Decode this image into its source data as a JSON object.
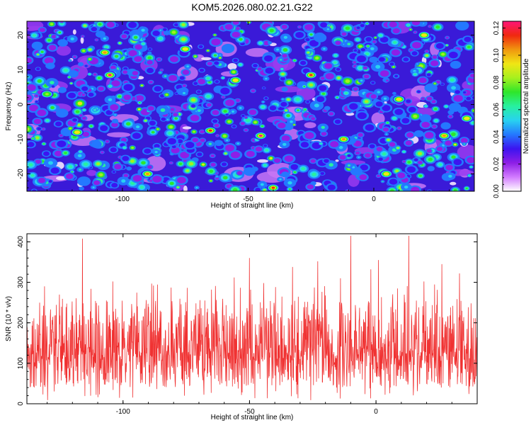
{
  "title": "KOM5.2026.080.02.21.G22",
  "chart_data": [
    {
      "type": "heatmap",
      "title": "KOM5.2026.080.02.21.G22",
      "xlabel": "Height of straight line (km)",
      "ylabel": "Frequency (Hz)",
      "xlim": [
        -138,
        40
      ],
      "ylim": [
        -25,
        24
      ],
      "xticks": [
        -100,
        -50,
        0
      ],
      "yticks": [
        -20,
        -10,
        0,
        10,
        20
      ],
      "colorbar": {
        "label": "Normalized spectral amplitude",
        "range": [
          0,
          0.125
        ],
        "ticks": [
          "0.00",
          "0.02",
          "0.04",
          "0.06",
          "0.08",
          "0.10",
          "0.12"
        ],
        "colors": [
          "#ffffff",
          "#d27bff",
          "#8e1ee6",
          "#3c14f0",
          "#2478ff",
          "#28d2f0",
          "#28f0a0",
          "#2ee62a",
          "#a6f01e",
          "#f0e614",
          "#f0960f",
          "#f0280f",
          "#ff1478"
        ]
      },
      "hotspots": [
        {
          "x": -105,
          "y": 8.5,
          "v": 0.12
        },
        {
          "x": -107,
          "y": 15,
          "v": 0.1
        },
        {
          "x": -45,
          "y": -9,
          "v": 0.12
        },
        {
          "x": -65,
          "y": -7.5,
          "v": 0.11
        },
        {
          "x": -25,
          "y": 8.5,
          "v": 0.11
        },
        {
          "x": -40,
          "y": -24,
          "v": 0.11
        },
        {
          "x": 10,
          "y": 1.5,
          "v": 0.09
        },
        {
          "x": 28,
          "y": -9,
          "v": 0.1
        },
        {
          "x": -75,
          "y": 16,
          "v": 0.09
        },
        {
          "x": -12,
          "y": -10,
          "v": 0.1
        },
        {
          "x": 37,
          "y": -4,
          "v": 0.09
        },
        {
          "x": -90,
          "y": -20,
          "v": 0.1
        },
        {
          "x": -118,
          "y": -8,
          "v": 0.09
        },
        {
          "x": -55,
          "y": 7,
          "v": 0.09
        },
        {
          "x": 5,
          "y": -20,
          "v": 0.09
        },
        {
          "x": -130,
          "y": 3,
          "v": 0.08
        },
        {
          "x": 20,
          "y": 20,
          "v": 0.09
        }
      ]
    },
    {
      "type": "line",
      "xlabel": "Height of straight line (km)",
      "ylabel": "SNR (10 * v/v)",
      "xlim": [
        -138,
        40
      ],
      "ylim": [
        0,
        420
      ],
      "xticks": [
        -100,
        -50,
        0
      ],
      "yticks": [
        0,
        100,
        200,
        300,
        400
      ],
      "color": "#f03232",
      "series_summary": "noisy trace sampled every ~0.12 km; typical values 40-250, peaks up to ~415",
      "peaks": [
        {
          "x": -116,
          "y": 408
        },
        {
          "x": -10,
          "y": 415
        },
        {
          "x": 13,
          "y": 415
        },
        {
          "x": -50,
          "y": 360
        },
        {
          "x": 1,
          "y": 355
        },
        {
          "x": -33,
          "y": 338
        },
        {
          "x": -131,
          "y": 290
        },
        {
          "x": -88,
          "y": 292
        },
        {
          "x": 33,
          "y": 322
        },
        {
          "x": -23,
          "y": 352
        },
        {
          "x": -2,
          "y": 332
        },
        {
          "x": -56,
          "y": 312
        },
        {
          "x": -81,
          "y": 287
        },
        {
          "x": 19,
          "y": 302
        },
        {
          "x": -104,
          "y": 302
        },
        {
          "x": -65,
          "y": 282
        },
        {
          "x": -14,
          "y": 310
        },
        {
          "x": 26,
          "y": 345
        }
      ]
    }
  ]
}
